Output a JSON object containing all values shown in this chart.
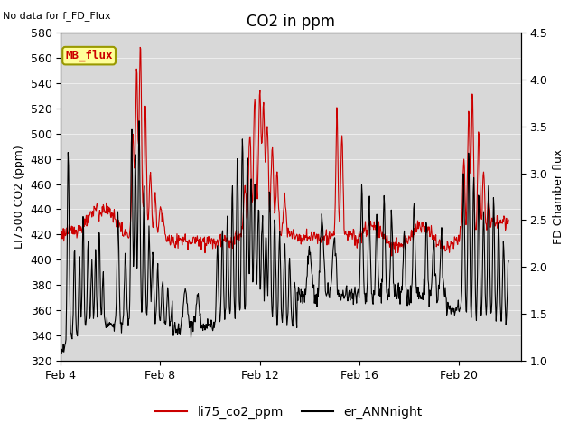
{
  "title": "CO2 in ppm",
  "top_left_text": "No data for f_FD_Flux",
  "ylabel_left": "LI7500 CO2 (ppm)",
  "ylabel_right": "FD Chamber flux",
  "ylim_left": [
    320,
    580
  ],
  "ylim_right": [
    1.0,
    4.5
  ],
  "yticks_left": [
    320,
    340,
    360,
    380,
    400,
    420,
    440,
    460,
    480,
    500,
    520,
    540,
    560,
    580
  ],
  "yticks_right": [
    1.0,
    1.5,
    2.0,
    2.5,
    3.0,
    3.5,
    4.0,
    4.5
  ],
  "xtick_labels": [
    "Feb 4",
    "Feb 8",
    "Feb 12",
    "Feb 16",
    "Feb 20"
  ],
  "xtick_positions": [
    0,
    4,
    8,
    12,
    16
  ],
  "xlim": [
    0,
    18.5
  ],
  "legend_box_label": "MB_flux",
  "legend_line1_label": "li75_co2_ppm",
  "legend_line2_label": "er_ANNnight",
  "line1_color": "#cc0000",
  "line2_color": "#000000",
  "plot_bg_color": "#d8d8d8",
  "grid_color": "#eeeeee",
  "title_fontsize": 12,
  "axis_label_fontsize": 9,
  "tick_fontsize": 9,
  "top_left_fontsize": 8,
  "legend_fontsize": 10
}
